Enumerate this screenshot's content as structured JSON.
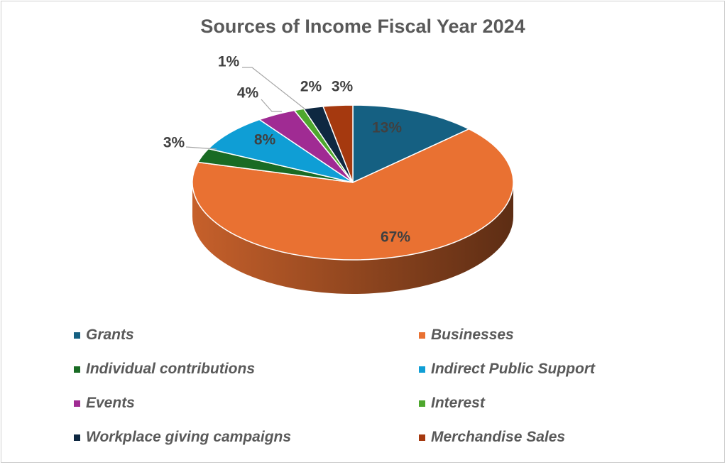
{
  "chart_data": {
    "type": "pie",
    "variant": "3d",
    "title": "Sources of Income Fiscal Year 2024",
    "slices": [
      {
        "name": "Grants",
        "value": 13,
        "label": "13%",
        "color": "#156082"
      },
      {
        "name": "Businesses",
        "value": 67,
        "label": "67%",
        "color": "#E97132"
      },
      {
        "name": "Individual contributions",
        "value": 3,
        "label": "3%",
        "color": "#196B24"
      },
      {
        "name": "Indirect Public Support",
        "value": 8,
        "label": "8%",
        "color": "#0F9ED5"
      },
      {
        "name": "Events",
        "value": 4,
        "label": "4%",
        "color": "#A02B93"
      },
      {
        "name": "Interest",
        "value": 1,
        "label": "1%",
        "color": "#4EA72E"
      },
      {
        "name": "Workplace giving campaigns",
        "value": 2,
        "label": "2%",
        "color": "#0E2841"
      },
      {
        "name": "Merchandise Sales",
        "value": 3,
        "label": "3%",
        "color": "#A5390F"
      }
    ],
    "legend_position": "bottom"
  }
}
